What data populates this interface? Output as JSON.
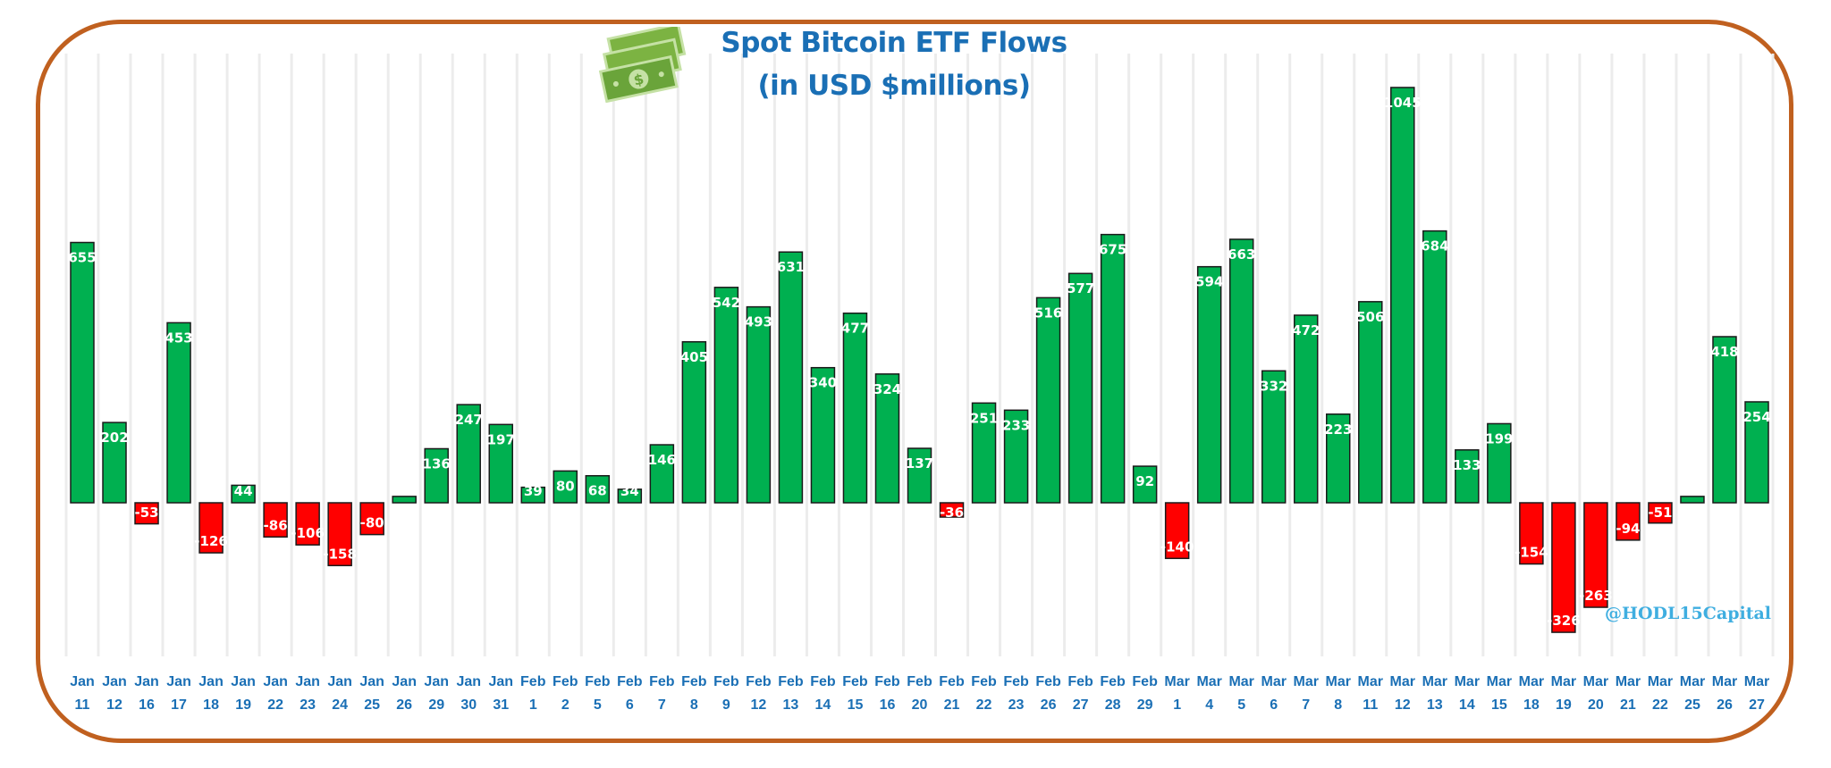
{
  "chart_data": {
    "type": "bar",
    "title": "Spot Bitcoin ETF Flows",
    "subtitle": "(in USD $millions)",
    "watermark": "@HODL15Capital",
    "categories": [
      "Jan 11",
      "Jan 12",
      "Jan 16",
      "Jan 17",
      "Jan 18",
      "Jan 19",
      "Jan 22",
      "Jan 23",
      "Jan 24",
      "Jan 25",
      "Jan 26",
      "Jan 29",
      "Jan 30",
      "Jan 31",
      "Feb 1",
      "Feb 2",
      "Feb 5",
      "Feb 6",
      "Feb 7",
      "Feb 8",
      "Feb 9",
      "Feb 12",
      "Feb 13",
      "Feb 14",
      "Feb 15",
      "Feb 16",
      "Feb 20",
      "Feb 21",
      "Feb 22",
      "Feb 23",
      "Feb 26",
      "Feb 27",
      "Feb 28",
      "Feb 29",
      "Mar 1",
      "Mar 4",
      "Mar 5",
      "Mar 6",
      "Mar 7",
      "Mar 8",
      "Mar 11",
      "Mar 12",
      "Mar 13",
      "Mar 14",
      "Mar 15",
      "Mar 18",
      "Mar 19",
      "Mar 20",
      "Mar 21",
      "Mar 22",
      "Mar 25",
      "Mar 26",
      "Mar 27"
    ],
    "values": [
      655,
      202,
      -53,
      453,
      -126,
      44,
      -86,
      -106,
      -158,
      -80,
      16,
      136,
      247,
      197,
      39,
      80,
      68,
      34,
      146,
      405,
      542,
      493,
      631,
      340,
      477,
      324,
      137,
      -36,
      251,
      233,
      516,
      577,
      675,
      92,
      -140,
      594,
      663,
      332,
      472,
      223,
      506,
      1045,
      684,
      133,
      199,
      -154,
      -326,
      -263,
      -94,
      -51,
      16,
      418,
      254
    ],
    "labels_shown": [
      true,
      true,
      true,
      true,
      true,
      true,
      true,
      true,
      true,
      true,
      false,
      true,
      true,
      true,
      true,
      true,
      true,
      true,
      true,
      true,
      true,
      true,
      true,
      true,
      true,
      true,
      true,
      true,
      true,
      true,
      true,
      true,
      true,
      true,
      true,
      true,
      true,
      true,
      true,
      true,
      true,
      true,
      true,
      true,
      true,
      true,
      true,
      true,
      true,
      true,
      false,
      true,
      true
    ],
    "ylim": [
      -340,
      1060
    ],
    "grid": "vertical",
    "colors": {
      "positive": "#00b050",
      "negative": "#ff0000",
      "label": "#ffffff",
      "axis_text": "#1a6fb5",
      "frame": "#c0601f",
      "title": "#1a6fb5",
      "watermark": "#3faee0"
    },
    "xlabel": "",
    "ylabel": ""
  },
  "icons": {
    "money": "money-bills-icon"
  }
}
